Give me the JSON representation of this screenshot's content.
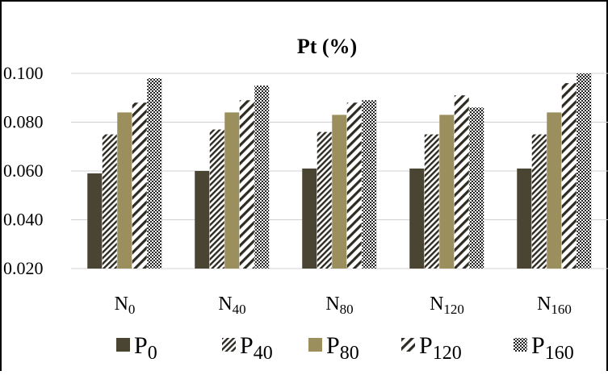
{
  "chart_data": {
    "type": "bar",
    "title": "Pt (%)",
    "xlabel": "",
    "ylabel": "",
    "ylim": [
      0.02,
      0.1
    ],
    "yticks": [
      "0.020",
      "0.040",
      "0.060",
      "0.080",
      "0.100"
    ],
    "categories": [
      {
        "base": "N",
        "sub": "0"
      },
      {
        "base": "N",
        "sub": "40"
      },
      {
        "base": "N",
        "sub": "80"
      },
      {
        "base": "N",
        "sub": "120"
      },
      {
        "base": "N",
        "sub": "160"
      }
    ],
    "series": [
      {
        "name": "P0",
        "base": "P",
        "sub": "0",
        "fill": "solid",
        "color": "#4a4432",
        "values": [
          0.059,
          0.06,
          0.061,
          0.061,
          0.061
        ]
      },
      {
        "name": "P40",
        "base": "P",
        "sub": "40",
        "fill": "dense-diagonal",
        "color": "#2e2b22",
        "values": [
          0.075,
          0.077,
          0.076,
          0.075,
          0.075
        ]
      },
      {
        "name": "P80",
        "base": "P",
        "sub": "80",
        "fill": "solid",
        "color": "#9b8f5e",
        "values": [
          0.084,
          0.084,
          0.083,
          0.083,
          0.084
        ]
      },
      {
        "name": "P120",
        "base": "P",
        "sub": "120",
        "fill": "wide-diagonal",
        "color": "#2e2b22",
        "values": [
          0.088,
          0.089,
          0.088,
          0.091,
          0.096
        ]
      },
      {
        "name": "P160",
        "base": "P",
        "sub": "160",
        "fill": "checker",
        "color": "#2a2a2a",
        "values": [
          0.098,
          0.095,
          0.089,
          0.086,
          0.1
        ]
      }
    ],
    "grid": true,
    "legend": "bottom"
  }
}
